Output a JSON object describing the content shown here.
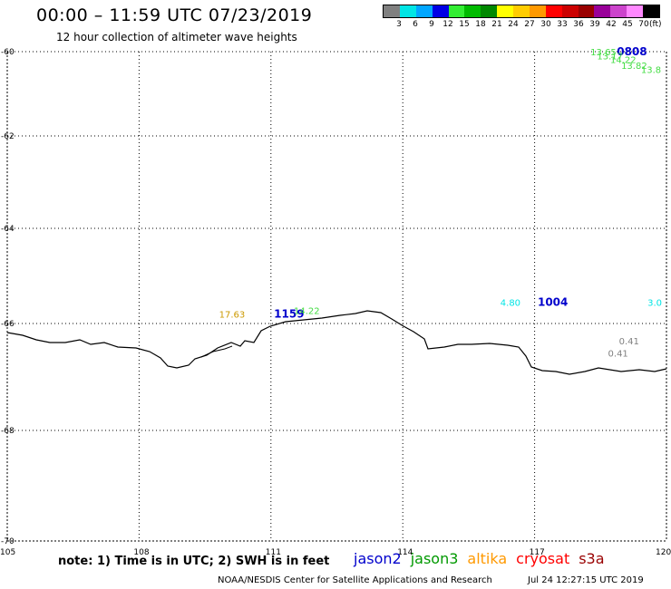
{
  "header": {
    "title": "00:00 – 11:59 UTC 07/23/2019",
    "subtitle": "12 hour collection of altimeter wave heights"
  },
  "legend": {
    "colors": [
      "#808080",
      "#00e5e5",
      "#00a6ff",
      "#0000e5",
      "#33ee33",
      "#00bb00",
      "#008800",
      "#ffff00",
      "#ffcc00",
      "#ff9900",
      "#ff0000",
      "#cc0000",
      "#990000",
      "#990099",
      "#cc44cc",
      "#ff88ff",
      "#000000"
    ],
    "labels": [
      "3",
      "6",
      "9",
      "12",
      "15",
      "18",
      "21",
      "24",
      "27",
      "30",
      "33",
      "36",
      "39",
      "42",
      "45",
      "70"
    ],
    "unit": "(ft)"
  },
  "map": {
    "lat_labels": [
      "-60",
      "-62",
      "-64",
      "-66",
      "-68",
      "-70"
    ],
    "lon_labels": [
      "105",
      "108",
      "111",
      "114",
      "117",
      "120"
    ],
    "lat_values": [
      -60,
      -62,
      -64,
      -66,
      -68,
      -70
    ],
    "lon_values": [
      105,
      108,
      111,
      114,
      117,
      120
    ],
    "lon_range": [
      105,
      120
    ],
    "grid": "dotted"
  },
  "observations": [
    {
      "text": "13.65",
      "color": "#44dd44",
      "lon": 118.6,
      "lat": -60.0
    },
    {
      "text": "0808",
      "color": "#0000cc",
      "lon": 119.2,
      "lat": -60.0,
      "bold": true
    },
    {
      "text": "13.17",
      "color": "#44dd44",
      "lon": 118.75,
      "lat": -60.1
    },
    {
      "text": "14.22",
      "color": "#44dd44",
      "lon": 119.05,
      "lat": -60.18
    },
    {
      "text": "13.82",
      "color": "#44dd44",
      "lon": 119.3,
      "lat": -60.32
    },
    {
      "text": "13.8",
      "color": "#44dd44",
      "lon": 119.75,
      "lat": -60.42
    },
    {
      "text": "17.63",
      "color": "#cc9900",
      "lon": 110.15,
      "lat": -65.8
    },
    {
      "text": "1159",
      "color": "#0000cc",
      "lon": 111.4,
      "lat": -65.8,
      "bold": true
    },
    {
      "text": "14.22",
      "color": "#44dd44",
      "lon": 111.85,
      "lat": -65.72
    },
    {
      "text": "4.80",
      "color": "#00e5e5",
      "lon": 116.55,
      "lat": -65.55
    },
    {
      "text": "1004",
      "color": "#0000cc",
      "lon": 117.4,
      "lat": -65.55,
      "bold": true
    },
    {
      "text": "3.0",
      "color": "#00e5e5",
      "lon": 119.9,
      "lat": -65.55
    },
    {
      "text": "0.41",
      "color": "#808080",
      "lon": 119.25,
      "lat": -66.32
    },
    {
      "text": "0.41",
      "color": "#808080",
      "lon": 119.0,
      "lat": -66.55
    }
  ],
  "footer": {
    "note": "note: 1) Time is in UTC; 2) SWH is in feet",
    "satellites": [
      {
        "name": "jason2",
        "color": "#0000cc"
      },
      {
        "name": "jason3",
        "color": "#009900"
      },
      {
        "name": "altika",
        "color": "#ff9900"
      },
      {
        "name": "cryosat",
        "color": "#ff0000"
      },
      {
        "name": "s3a",
        "color": "#990000"
      }
    ],
    "credit": "NOAA/NESDIS Center for Satellite Applications and Research",
    "generated": "Jul 24 12:27:15 UTC 2019"
  }
}
